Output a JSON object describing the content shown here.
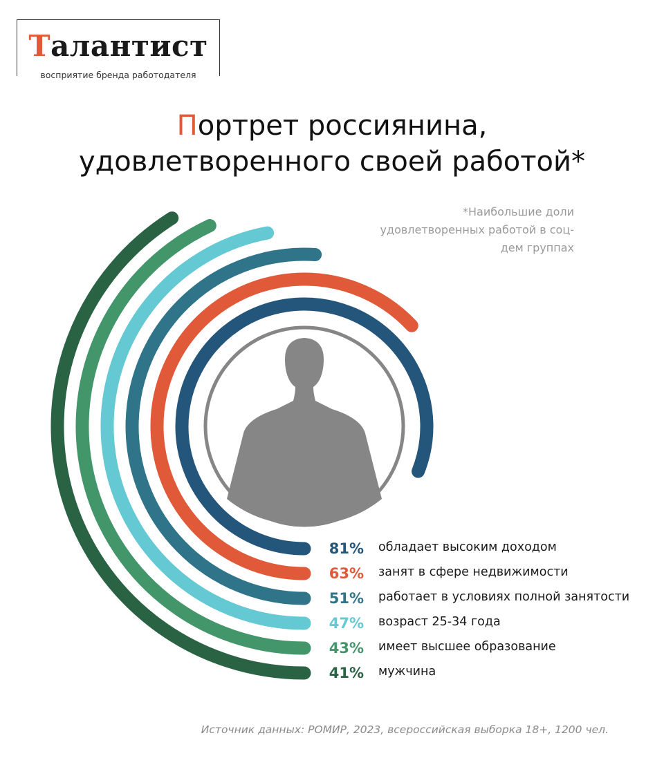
{
  "logo": {
    "first_letter": "Т",
    "rest": "алантист",
    "tagline": "восприятие бренда работодателя"
  },
  "title": {
    "first_letter": "П",
    "line1_rest": "ортрет россиянина,",
    "line2": "удовлетворенного своей работой*"
  },
  "note": "*Наибольшие доли удовлетворенных работой в соц-дем группах",
  "source": "Источник данных: РОМИР, 2023, всероссийская выборка 18+, 1200 чел.",
  "colors": {
    "accent": "#e05a3a",
    "silhouette": "#868686"
  },
  "chart_data": {
    "type": "radial-bar",
    "unit": "%",
    "series": [
      {
        "value": 81,
        "label": "обладает высоким доходом",
        "color": "#24557a"
      },
      {
        "value": 63,
        "label": "занят в сфере недвижимости",
        "color": "#e05a3a"
      },
      {
        "value": 51,
        "label": "работает в условиях полной занятости",
        "color": "#2f7489"
      },
      {
        "value": 47,
        "label": "возраст 25-34 года",
        "color": "#64c9d2"
      },
      {
        "value": 43,
        "label": "имеет высшее образование",
        "color": "#43966a"
      },
      {
        "value": 41,
        "label": "мужчина",
        "color": "#2a6244"
      }
    ]
  }
}
